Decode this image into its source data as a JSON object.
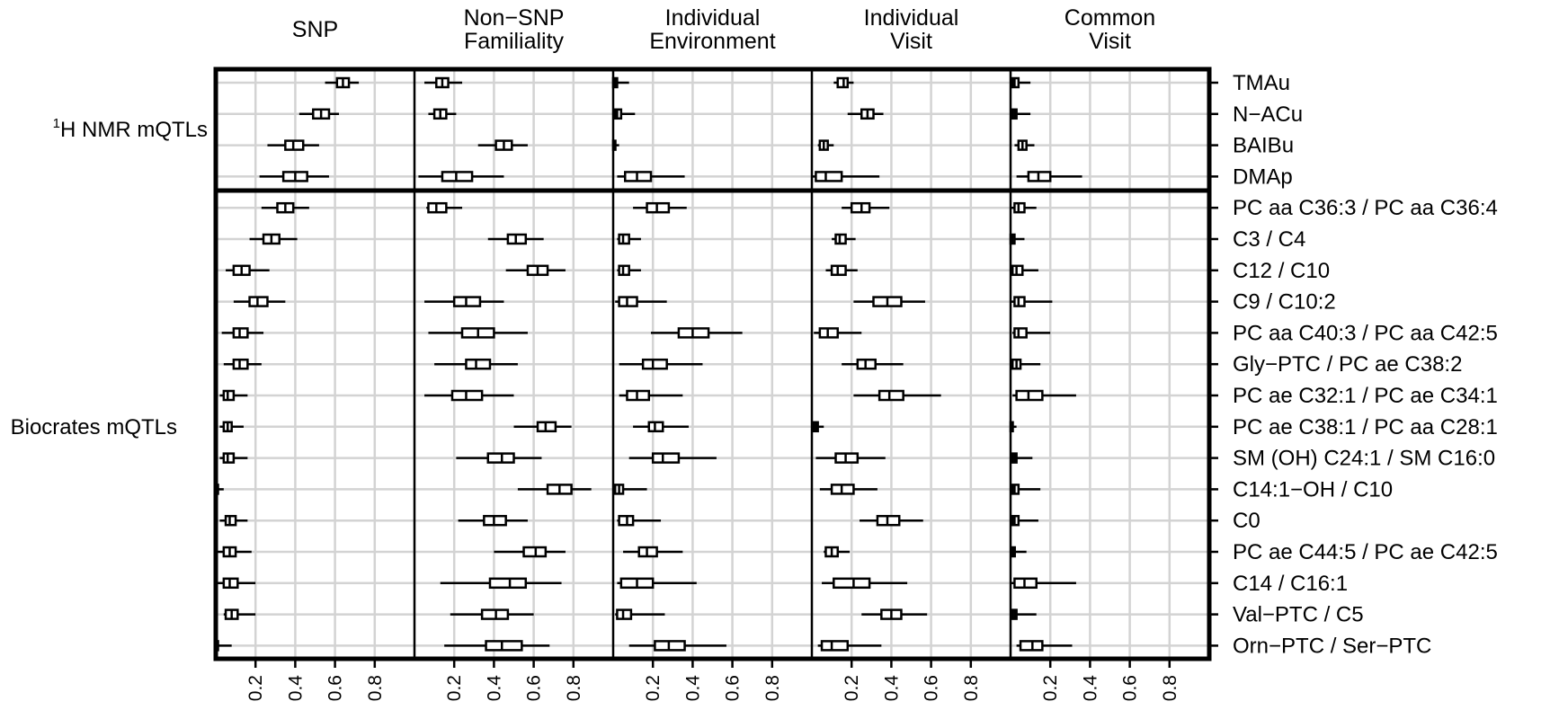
{
  "chart_data": {
    "type": "boxplot",
    "panels": [
      {
        "title_line1": "SNP",
        "title_line2": ""
      },
      {
        "title_line1": "Non−SNP",
        "title_line2": "Familiality"
      },
      {
        "title_line1": "Individual",
        "title_line2": "Environment"
      },
      {
        "title_line1": "Individual",
        "title_line2": "Visit"
      },
      {
        "title_line1": "Common",
        "title_line2": "Visit"
      }
    ],
    "xlim": [
      0,
      1
    ],
    "x_ticks": [
      "0.2",
      "0.4",
      "0.6",
      "0.8"
    ],
    "x_tick_values": [
      0.2,
      0.4,
      0.6,
      0.8
    ],
    "groups": [
      {
        "label_sup": "1",
        "label_rest": "H NMR mQTLs",
        "rows": [
          0,
          3
        ]
      },
      {
        "label": "Biocrates mQTLs",
        "rows": [
          4,
          18
        ]
      }
    ],
    "rows": [
      {
        "label": "TMAu",
        "stats": [
          [
            0.55,
            0.61,
            0.64,
            0.67,
            0.72
          ],
          [
            0.05,
            0.11,
            0.14,
            0.17,
            0.24
          ],
          [
            0.0,
            0.0,
            0.01,
            0.02,
            0.08
          ],
          [
            0.11,
            0.13,
            0.16,
            0.18,
            0.21
          ],
          [
            0.0,
            0.01,
            0.02,
            0.04,
            0.1
          ]
        ]
      },
      {
        "label": "N−ACu",
        "stats": [
          [
            0.42,
            0.49,
            0.53,
            0.57,
            0.62
          ],
          [
            0.07,
            0.1,
            0.13,
            0.16,
            0.21
          ],
          [
            0.0,
            0.01,
            0.02,
            0.04,
            0.11
          ],
          [
            0.18,
            0.25,
            0.28,
            0.31,
            0.36
          ],
          [
            0.0,
            0.01,
            0.02,
            0.03,
            0.1
          ]
        ]
      },
      {
        "label": "BAIBu",
        "stats": [
          [
            0.26,
            0.35,
            0.39,
            0.44,
            0.52
          ],
          [
            0.32,
            0.41,
            0.45,
            0.49,
            0.57
          ],
          [
            0.0,
            0.0,
            0.01,
            0.01,
            0.03
          ],
          [
            0.03,
            0.04,
            0.06,
            0.08,
            0.11
          ],
          [
            0.02,
            0.04,
            0.06,
            0.08,
            0.12
          ]
        ]
      },
      {
        "label": "DMAp",
        "stats": [
          [
            0.22,
            0.34,
            0.4,
            0.46,
            0.57
          ],
          [
            0.02,
            0.14,
            0.21,
            0.29,
            0.45
          ],
          [
            0.02,
            0.06,
            0.12,
            0.19,
            0.36
          ],
          [
            0.0,
            0.02,
            0.07,
            0.15,
            0.34
          ],
          [
            0.03,
            0.09,
            0.14,
            0.2,
            0.36
          ]
        ]
      },
      {
        "label": "PC aa C36:3 / PC aa C36:4",
        "stats": [
          [
            0.23,
            0.31,
            0.35,
            0.39,
            0.47
          ],
          [
            0.06,
            0.07,
            0.11,
            0.16,
            0.24
          ],
          [
            0.1,
            0.17,
            0.22,
            0.28,
            0.37
          ],
          [
            0.15,
            0.2,
            0.25,
            0.29,
            0.39
          ],
          [
            0.0,
            0.02,
            0.04,
            0.07,
            0.13
          ]
        ]
      },
      {
        "label": "C3 / C4",
        "stats": [
          [
            0.17,
            0.24,
            0.28,
            0.32,
            0.41
          ],
          [
            0.37,
            0.47,
            0.51,
            0.56,
            0.65
          ],
          [
            0.02,
            0.03,
            0.05,
            0.08,
            0.14
          ],
          [
            0.1,
            0.12,
            0.14,
            0.17,
            0.22
          ],
          [
            0.0,
            0.0,
            0.01,
            0.02,
            0.07
          ]
        ]
      },
      {
        "label": "C12 / C10",
        "stats": [
          [
            0.05,
            0.09,
            0.13,
            0.17,
            0.27
          ],
          [
            0.46,
            0.57,
            0.62,
            0.67,
            0.76
          ],
          [
            0.02,
            0.03,
            0.05,
            0.08,
            0.14
          ],
          [
            0.07,
            0.1,
            0.13,
            0.17,
            0.23
          ],
          [
            0.0,
            0.01,
            0.03,
            0.06,
            0.14
          ]
        ]
      },
      {
        "label": "C9 / C10:2",
        "stats": [
          [
            0.09,
            0.17,
            0.21,
            0.26,
            0.35
          ],
          [
            0.05,
            0.2,
            0.26,
            0.33,
            0.45
          ],
          [
            0.01,
            0.03,
            0.07,
            0.12,
            0.27
          ],
          [
            0.21,
            0.31,
            0.38,
            0.45,
            0.57
          ],
          [
            0.0,
            0.02,
            0.04,
            0.07,
            0.21
          ]
        ]
      },
      {
        "label": "PC aa C40:3 / PC aa C42:5",
        "stats": [
          [
            0.03,
            0.09,
            0.12,
            0.16,
            0.24
          ],
          [
            0.07,
            0.24,
            0.32,
            0.4,
            0.57
          ],
          [
            0.19,
            0.33,
            0.4,
            0.48,
            0.65
          ],
          [
            0.01,
            0.04,
            0.08,
            0.13,
            0.25
          ],
          [
            0.01,
            0.02,
            0.04,
            0.08,
            0.2
          ]
        ]
      },
      {
        "label": "Gly−PTC / PC ae C38:2",
        "stats": [
          [
            0.04,
            0.09,
            0.12,
            0.16,
            0.23
          ],
          [
            0.1,
            0.26,
            0.31,
            0.38,
            0.52
          ],
          [
            0.03,
            0.15,
            0.2,
            0.27,
            0.45
          ],
          [
            0.15,
            0.23,
            0.27,
            0.32,
            0.46
          ],
          [
            0.0,
            0.01,
            0.03,
            0.05,
            0.15
          ]
        ]
      },
      {
        "label": "PC ae C32:1 / PC ae C34:1",
        "stats": [
          [
            0.02,
            0.04,
            0.06,
            0.09,
            0.16
          ],
          [
            0.05,
            0.19,
            0.26,
            0.34,
            0.5
          ],
          [
            0.03,
            0.07,
            0.12,
            0.18,
            0.35
          ],
          [
            0.21,
            0.34,
            0.39,
            0.46,
            0.65
          ],
          [
            0.01,
            0.03,
            0.09,
            0.16,
            0.33
          ]
        ]
      },
      {
        "label": "PC ae C38:1 / PC aa C28:1",
        "stats": [
          [
            0.02,
            0.04,
            0.06,
            0.08,
            0.14
          ],
          [
            0.5,
            0.62,
            0.66,
            0.71,
            0.79
          ],
          [
            0.1,
            0.18,
            0.21,
            0.25,
            0.38
          ],
          [
            0.0,
            0.01,
            0.02,
            0.03,
            0.06
          ],
          [
            0.0,
            0.0,
            0.01,
            0.01,
            0.03
          ]
        ]
      },
      {
        "label": "SM (OH) C24:1 / SM C16:0",
        "stats": [
          [
            0.02,
            0.04,
            0.06,
            0.09,
            0.16
          ],
          [
            0.21,
            0.37,
            0.44,
            0.5,
            0.64
          ],
          [
            0.08,
            0.2,
            0.25,
            0.33,
            0.52
          ],
          [
            0.02,
            0.12,
            0.17,
            0.23,
            0.37
          ],
          [
            0.0,
            0.01,
            0.02,
            0.03,
            0.11
          ]
        ]
      },
      {
        "label": "C14:1−OH / C10",
        "stats": [
          [
            0.0,
            0.0,
            0.01,
            0.01,
            0.04
          ],
          [
            0.52,
            0.67,
            0.73,
            0.79,
            0.89
          ],
          [
            0.0,
            0.01,
            0.03,
            0.05,
            0.17
          ],
          [
            0.04,
            0.1,
            0.15,
            0.21,
            0.33
          ],
          [
            0.0,
            0.01,
            0.02,
            0.04,
            0.15
          ]
        ]
      },
      {
        "label": "C0",
        "stats": [
          [
            0.02,
            0.05,
            0.07,
            0.1,
            0.16
          ],
          [
            0.22,
            0.35,
            0.4,
            0.46,
            0.57
          ],
          [
            0.02,
            0.03,
            0.07,
            0.1,
            0.24
          ],
          [
            0.24,
            0.33,
            0.38,
            0.44,
            0.56
          ],
          [
            0.0,
            0.01,
            0.02,
            0.04,
            0.14
          ]
        ]
      },
      {
        "label": "PC ae C44:5 / PC ae C42:5",
        "stats": [
          [
            0.01,
            0.04,
            0.07,
            0.1,
            0.18
          ],
          [
            0.4,
            0.55,
            0.61,
            0.66,
            0.76
          ],
          [
            0.05,
            0.13,
            0.17,
            0.22,
            0.35
          ],
          [
            0.06,
            0.07,
            0.1,
            0.13,
            0.19
          ],
          [
            0.0,
            0.01,
            0.01,
            0.02,
            0.08
          ]
        ]
      },
      {
        "label": "C14 / C16:1",
        "stats": [
          [
            0.01,
            0.04,
            0.07,
            0.11,
            0.2
          ],
          [
            0.13,
            0.38,
            0.48,
            0.56,
            0.74
          ],
          [
            0.02,
            0.04,
            0.12,
            0.2,
            0.42
          ],
          [
            0.05,
            0.11,
            0.21,
            0.29,
            0.48
          ],
          [
            0.0,
            0.02,
            0.07,
            0.13,
            0.33
          ]
        ]
      },
      {
        "label": "Val−PTC / C5",
        "stats": [
          [
            0.04,
            0.05,
            0.08,
            0.11,
            0.2
          ],
          [
            0.18,
            0.34,
            0.41,
            0.47,
            0.6
          ],
          [
            0.01,
            0.02,
            0.05,
            0.09,
            0.26
          ],
          [
            0.25,
            0.35,
            0.4,
            0.45,
            0.58
          ],
          [
            0.0,
            0.01,
            0.02,
            0.03,
            0.13
          ]
        ]
      },
      {
        "label": "Orn−PTC / Ser−PTC",
        "stats": [
          [
            0.0,
            0.0,
            0.01,
            0.01,
            0.08
          ],
          [
            0.15,
            0.36,
            0.44,
            0.54,
            0.68
          ],
          [
            0.08,
            0.21,
            0.28,
            0.36,
            0.57
          ],
          [
            0.03,
            0.05,
            0.1,
            0.18,
            0.35
          ],
          [
            0.03,
            0.05,
            0.11,
            0.16,
            0.31
          ]
        ]
      }
    ]
  }
}
